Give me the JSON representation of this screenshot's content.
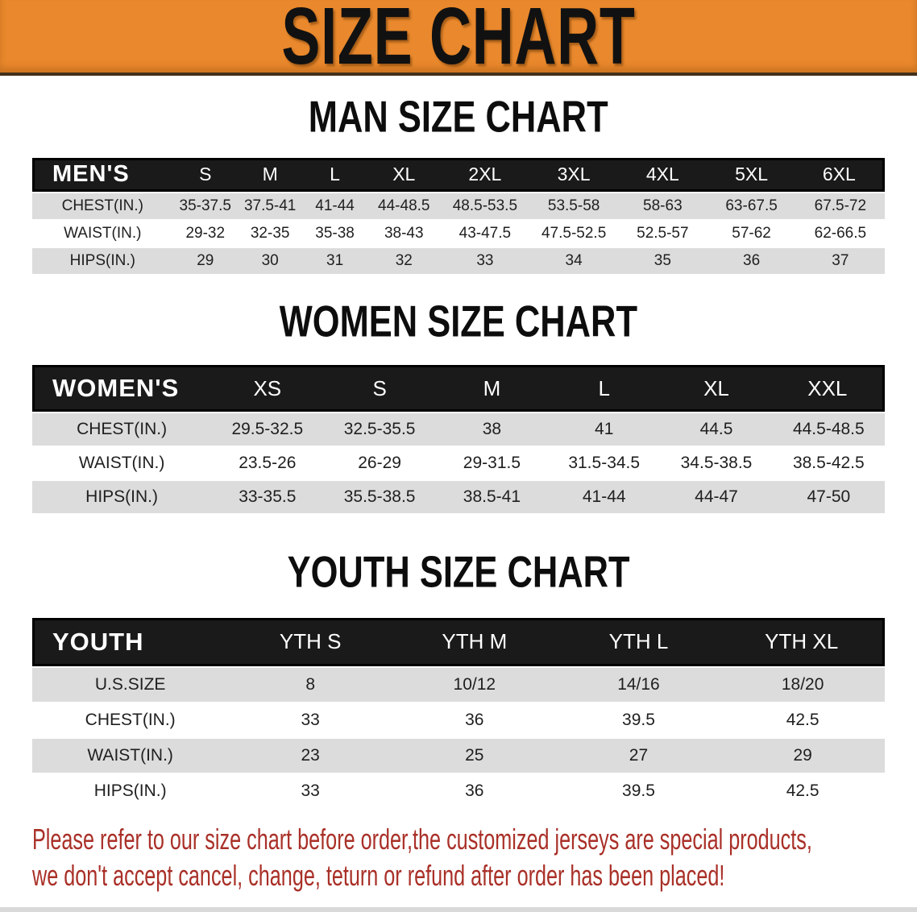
{
  "banner": {
    "title": "SIZE CHART"
  },
  "sections": {
    "men": {
      "heading": "MAN SIZE CHART"
    },
    "women": {
      "heading": "WOMEN SIZE CHART"
    },
    "youth": {
      "heading": "YOUTH SIZE CHART"
    }
  },
  "tables": {
    "men": {
      "label": "MEN'S",
      "columns": [
        "S",
        "M",
        "L",
        "XL",
        "2XL",
        "3XL",
        "4XL",
        "5XL",
        "6XL"
      ],
      "rows": [
        {
          "label": "CHEST(IN.)",
          "values": [
            "35-37.5",
            "37.5-41",
            "41-44",
            "44-48.5",
            "48.5-53.5",
            "53.5-58",
            "58-63",
            "63-67.5",
            "67.5-72"
          ]
        },
        {
          "label": "WAIST(IN.)",
          "values": [
            "29-32",
            "32-35",
            "35-38",
            "38-43",
            "43-47.5",
            "47.5-52.5",
            "52.5-57",
            "57-62",
            "62-66.5"
          ]
        },
        {
          "label": "HIPS(IN.)",
          "values": [
            "29",
            "30",
            "31",
            "32",
            "33",
            "34",
            "35",
            "36",
            "37"
          ]
        }
      ]
    },
    "women": {
      "label": "WOMEN'S",
      "columns": [
        "XS",
        "S",
        "M",
        "L",
        "XL",
        "XXL"
      ],
      "rows": [
        {
          "label": "CHEST(IN.)",
          "values": [
            "29.5-32.5",
            "32.5-35.5",
            "38",
            "41",
            "44.5",
            "44.5-48.5"
          ]
        },
        {
          "label": "WAIST(IN.)",
          "values": [
            "23.5-26",
            "26-29",
            "29-31.5",
            "31.5-34.5",
            "34.5-38.5",
            "38.5-42.5"
          ]
        },
        {
          "label": "HIPS(IN.)",
          "values": [
            "33-35.5",
            "35.5-38.5",
            "38.5-41",
            "41-44",
            "44-47",
            "47-50"
          ]
        }
      ]
    },
    "youth": {
      "label": "YOUTH",
      "columns": [
        "YTH S",
        "YTH M",
        "YTH L",
        "YTH XL"
      ],
      "rows": [
        {
          "label": "U.S.SIZE",
          "values": [
            "8",
            "10/12",
            "14/16",
            "18/20"
          ]
        },
        {
          "label": "CHEST(IN.)",
          "values": [
            "33",
            "36",
            "39.5",
            "42.5"
          ]
        },
        {
          "label": "WAIST(IN.)",
          "values": [
            "23",
            "25",
            "27",
            "29"
          ]
        },
        {
          "label": "HIPS(IN.)",
          "values": [
            "33",
            "36",
            "39.5",
            "42.5"
          ]
        }
      ]
    }
  },
  "disclaimer": {
    "line1": "Please refer to our size chart before order,the customized jerseys are special products,",
    "line2": "we don't accept cancel, change, teturn or refund after order has been placed!",
    "color": "#a93028"
  },
  "colors": {
    "banner_orange": "#e9882c",
    "header_black": "#1a1a1a",
    "row_gray": "#dcdcdc",
    "disclaimer_red": "#a93028"
  }
}
